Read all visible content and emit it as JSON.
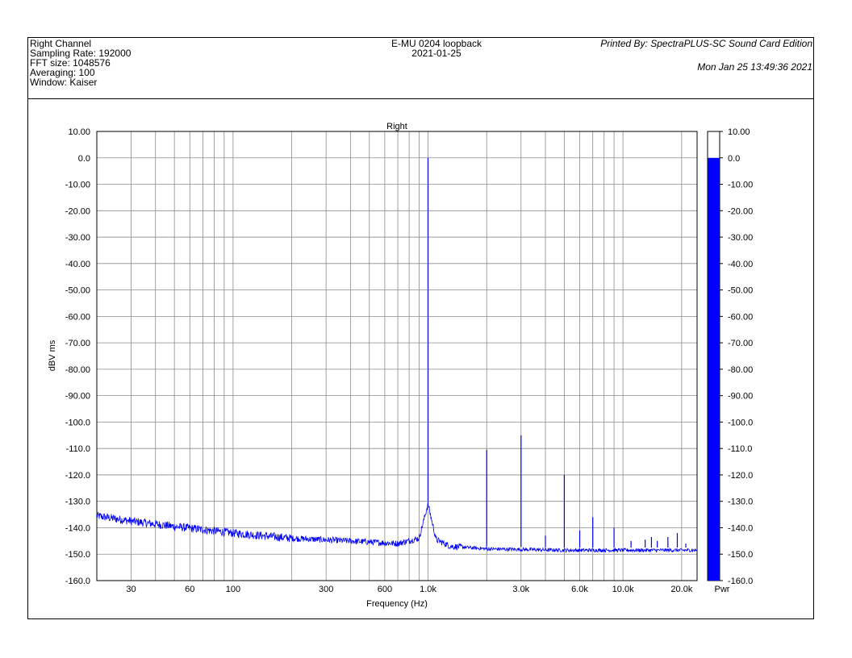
{
  "header": {
    "left_lines": [
      "Right Channel",
      "Sampling Rate: 192000",
      "FFT size: 1048576",
      "Averaging: 100",
      "Window: Kaiser"
    ],
    "center_lines": [
      "E-MU 0204 loopback",
      "2021-01-25"
    ],
    "printed_by": "Printed By: SpectraPLUS-SC Sound Card Edition",
    "timestamp": "Mon Jan 25 13:49:36 2021"
  },
  "chart_data": {
    "type": "line",
    "title": "Right",
    "xlabel": "Frequency (Hz)",
    "ylabel": "dBV ms",
    "x_scale": "log",
    "xlim": [
      20,
      24000
    ],
    "ylim": [
      -160,
      10
    ],
    "grid": true,
    "x_gridlines": [
      20,
      30,
      40,
      50,
      60,
      70,
      80,
      90,
      100,
      200,
      300,
      400,
      500,
      600,
      700,
      800,
      900,
      1000,
      2000,
      3000,
      4000,
      5000,
      6000,
      7000,
      8000,
      9000,
      10000,
      20000
    ],
    "x_ticks": [
      {
        "value": 30,
        "label": "30"
      },
      {
        "value": 60,
        "label": "60"
      },
      {
        "value": 100,
        "label": "100"
      },
      {
        "value": 300,
        "label": "300"
      },
      {
        "value": 600,
        "label": "600"
      },
      {
        "value": 1000,
        "label": "1.0k"
      },
      {
        "value": 3000,
        "label": "3.0k"
      },
      {
        "value": 6000,
        "label": "6.0k"
      },
      {
        "value": 10000,
        "label": "10.0k"
      },
      {
        "value": 20000,
        "label": "20.0k"
      }
    ],
    "y_ticks": [
      {
        "value": 10,
        "label": "10.00"
      },
      {
        "value": 0,
        "label": "0.0"
      },
      {
        "value": -10,
        "label": "-10.00"
      },
      {
        "value": -20,
        "label": "-20.00"
      },
      {
        "value": -30,
        "label": "-30.00"
      },
      {
        "value": -40,
        "label": "-40.00"
      },
      {
        "value": -50,
        "label": "-50.00"
      },
      {
        "value": -60,
        "label": "-60.00"
      },
      {
        "value": -70,
        "label": "-70.00"
      },
      {
        "value": -80,
        "label": "-80.00"
      },
      {
        "value": -90,
        "label": "-90.00"
      },
      {
        "value": -100,
        "label": "-100.0"
      },
      {
        "value": -110,
        "label": "-110.0"
      },
      {
        "value": -120,
        "label": "-120.0"
      },
      {
        "value": -130,
        "label": "-130.0"
      },
      {
        "value": -140,
        "label": "-140.0"
      },
      {
        "value": -150,
        "label": "-150.0"
      },
      {
        "value": -160,
        "label": "-160.0"
      }
    ],
    "series": [
      {
        "color": "#0000ff",
        "noise_floor": [
          [
            20,
            -135.5
          ],
          [
            30,
            -137.5
          ],
          [
            50,
            -139.5
          ],
          [
            100,
            -142
          ],
          [
            200,
            -144
          ],
          [
            400,
            -145
          ],
          [
            700,
            -146
          ],
          [
            900,
            -144
          ],
          [
            1000,
            -131
          ],
          [
            1100,
            -144.5
          ],
          [
            1300,
            -147
          ],
          [
            2000,
            -148
          ],
          [
            5000,
            -148.5
          ],
          [
            10000,
            -148.5
          ],
          [
            24000,
            -148.5
          ]
        ],
        "peaks": [
          {
            "x": 1000,
            "y": 0
          },
          {
            "x": 2000,
            "y": -110.5
          },
          {
            "x": 3000,
            "y": -105
          },
          {
            "x": 4000,
            "y": -143
          },
          {
            "x": 5000,
            "y": -120
          },
          {
            "x": 6000,
            "y": -141
          },
          {
            "x": 7000,
            "y": -136
          },
          {
            "x": 9000,
            "y": -140
          },
          {
            "x": 11000,
            "y": -145
          },
          {
            "x": 13000,
            "y": -144.5
          },
          {
            "x": 14000,
            "y": -143.5
          },
          {
            "x": 15000,
            "y": -145
          },
          {
            "x": 17000,
            "y": -143.5
          },
          {
            "x": 19000,
            "y": -142
          },
          {
            "x": 21000,
            "y": -146
          }
        ]
      }
    ],
    "meter": {
      "label": "Pwr",
      "value": 0,
      "range": [
        -160,
        10
      ],
      "color": "#0000ff"
    }
  }
}
